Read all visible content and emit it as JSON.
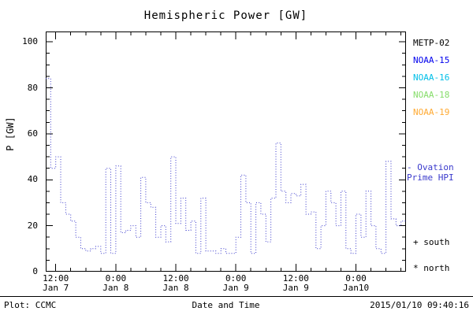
{
  "chart_data": {
    "type": "line",
    "subtype": "step-dotted",
    "title": "Hemispheric Power [GW]",
    "xlabel": "Date and Time",
    "ylabel": "P [GW]",
    "ylim": [
      0,
      104.5
    ],
    "y_ticks": [
      0,
      20,
      40,
      60,
      80,
      100
    ],
    "x_range_hours": [
      0,
      72
    ],
    "x_ticks": [
      {
        "t": 2,
        "time": "12:00",
        "date": "Jan 7"
      },
      {
        "t": 14,
        "time": "0:00",
        "date": "Jan 8"
      },
      {
        "t": 26,
        "time": "12:00",
        "date": "Jan 8"
      },
      {
        "t": 38,
        "time": "0:00",
        "date": "Jan 9"
      },
      {
        "t": 50,
        "time": "12:00",
        "date": "Jan 9"
      },
      {
        "t": 62,
        "time": "0:00",
        "date": "Jan10"
      }
    ],
    "grid": false,
    "series": [
      {
        "name": "Ovation Prime HPI",
        "color": "#3a3acc",
        "x_start_hour": 0,
        "x_step_hours": 1,
        "values": [
          84,
          45,
          50,
          30,
          25,
          22,
          15,
          10,
          9,
          10,
          11,
          8,
          45,
          8,
          46,
          17,
          18,
          20,
          15,
          41,
          30,
          28,
          15,
          20,
          13,
          50,
          21,
          32,
          18,
          22,
          8,
          32,
          9,
          9,
          8,
          10,
          8,
          8,
          15,
          42,
          30,
          8,
          30,
          25,
          13,
          32,
          56,
          35,
          30,
          34,
          33,
          38,
          25,
          26,
          10,
          20,
          35,
          30,
          20,
          35,
          10,
          8,
          25,
          15,
          35,
          20,
          10,
          8,
          48,
          23,
          20,
          22
        ]
      }
    ],
    "legend": {
      "satellites": [
        {
          "label": "METP-02",
          "color": "#000000"
        },
        {
          "label": "NOAA-15",
          "color": "#0000ee"
        },
        {
          "label": "NOAA-16",
          "color": "#00bfe8"
        },
        {
          "label": "NOAA-18",
          "color": "#86dd6a"
        },
        {
          "label": "NOAA-19",
          "color": "#ffaa33"
        }
      ],
      "ovation": {
        "line1": "- Ovation",
        "line2": "Prime HPI",
        "color": "#3a3acc"
      },
      "south_marker": {
        "symbol": "+",
        "label": "south"
      },
      "north_marker": {
        "symbol": "*",
        "label": "north"
      }
    }
  },
  "footer": {
    "left": "Plot: CCMC",
    "right": "2015/01/10 09:40:16"
  }
}
